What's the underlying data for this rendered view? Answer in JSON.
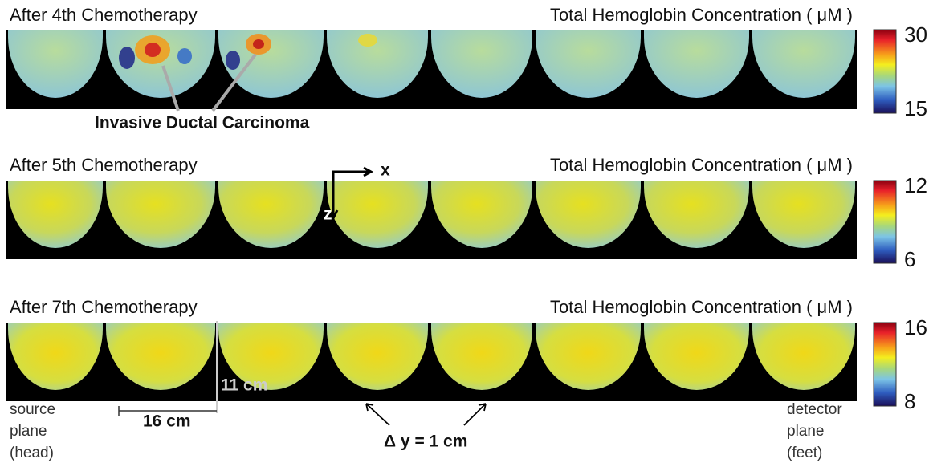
{
  "panels": [
    {
      "title": "After 4th Chemotherapy",
      "measure": "Total Hemoglobin Concentration ( μM )",
      "scale_max": 30,
      "scale_min": 15
    },
    {
      "title": "After 5th Chemotherapy",
      "measure": "Total Hemoglobin Concentration ( μM )",
      "scale_max": 12,
      "scale_min": 6
    },
    {
      "title": "After 7th Chemotherapy",
      "measure": "Total Hemoglobin Concentration ( μM )",
      "scale_max": 16,
      "scale_min": 8
    }
  ],
  "annotations": {
    "carcinoma": "Invasive Ductal Carcinoma",
    "x_axis": "x",
    "z_axis": "z",
    "depth": "11 cm",
    "width": "16 cm",
    "source": [
      "source",
      "plane",
      "(head)"
    ],
    "detector": [
      "detector",
      "plane",
      "(feet)"
    ],
    "step": "Δ y = 1 cm"
  }
}
